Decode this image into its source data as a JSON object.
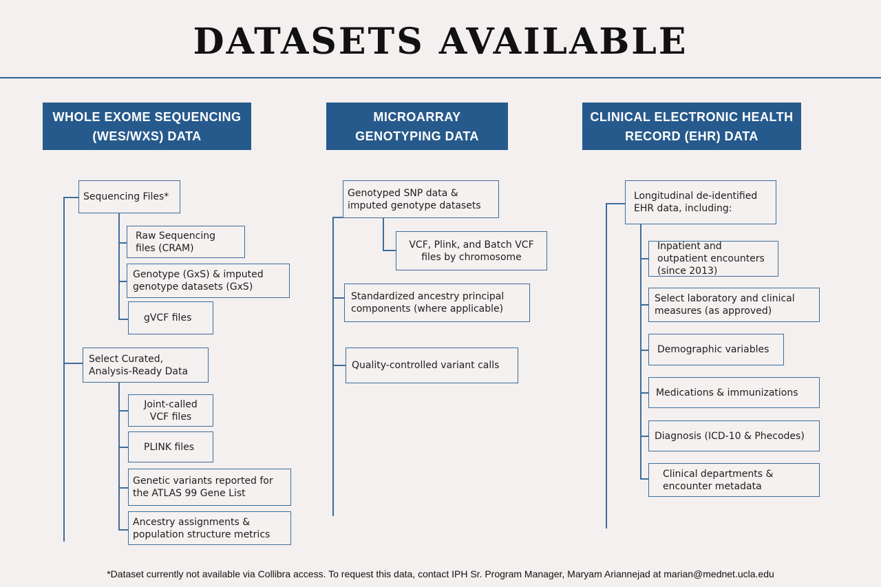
{
  "title": "DATASETS AVAILABLE",
  "columns": [
    {
      "header": "WHOLE EXOME SEQUENCING (WES/WXS) DATA",
      "groups": [
        {
          "label": "Sequencing Files*",
          "children": [
            "Raw Sequencing files (CRAM)",
            "Genotype (GxS) & imputed genotype datasets (GxS)",
            "gVCF files"
          ]
        },
        {
          "label": "Select Curated, Analysis-Ready Data",
          "children": [
            "Joint-called VCF files",
            "PLINK files",
            "Genetic variants reported for the ATLAS 99 Gene List",
            "Ancestry assignments & population structure metrics"
          ]
        }
      ]
    },
    {
      "header": "MICROARRAY GENOTYPING DATA",
      "groups": [
        {
          "label": "Genotyped SNP data & imputed genotype datasets",
          "children": [
            "VCF, Plink, and Batch VCF files by chromosome"
          ]
        },
        {
          "label": "Standardized ancestry principal components (where applicable)",
          "children": []
        },
        {
          "label": "Quality-controlled variant calls",
          "children": []
        }
      ]
    },
    {
      "header": "CLINICAL ELECTRONIC HEALTH RECORD (EHR) DATA",
      "groups": [
        {
          "label": "Longitudinal de-identified EHR data, including:",
          "children": [
            "Inpatient and outpatient encounters (since 2013)",
            "Select laboratory and clinical measures (as approved)",
            "Demographic variables",
            "Medications & immunizations",
            "Diagnosis (ICD-10 & Phecodes)",
            "Clinical departments & encounter metadata"
          ]
        }
      ]
    }
  ],
  "footnote": "*Dataset currently not available via Collibra access. To request this data, contact IPH Sr. Program Manager, Maryam Ariannejad at marian@mednet.ucla.edu",
  "colors": {
    "header_bg": "#275a8c",
    "line": "#3d6c9b",
    "background": "#f3f0ef"
  }
}
